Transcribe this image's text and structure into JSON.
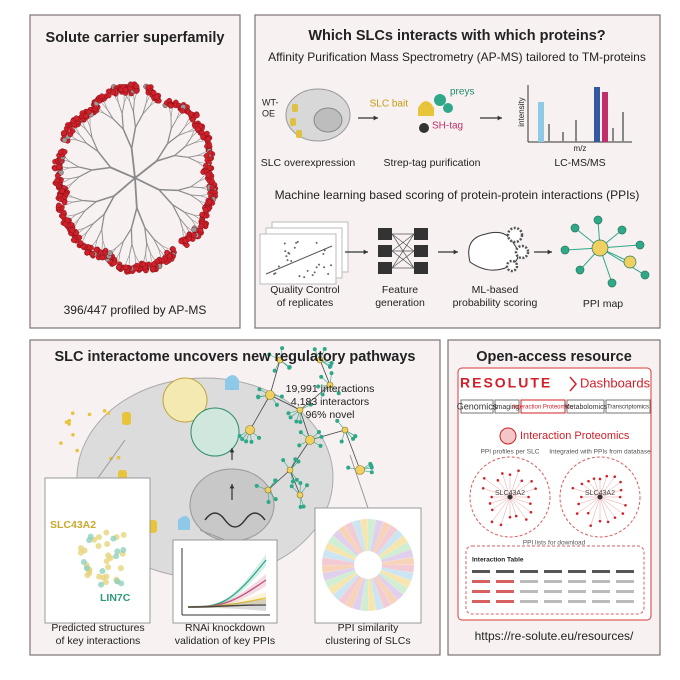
{
  "superfamily": {
    "title": "Solute carrier superfamily",
    "caption": "396/447 profiled by AP-MS"
  },
  "workflow": {
    "title": "Which SLCs interacts with which proteins?",
    "apms_heading": "Affinity Purification Mass Spectrometry (AP-MS) tailored to TM-proteins",
    "apms_labels": {
      "wt_oe": [
        "WT-",
        "OE"
      ],
      "slc_bait": "SLC bait",
      "preys": "preys",
      "sh_tag": "SH-tag",
      "intensity": "intensity",
      "mz": "m/z"
    },
    "apms_steps": [
      "SLC overexpression",
      "Strep-tag purification",
      "LC-MS/MS"
    ],
    "ml_heading": "Machine learning based scoring of protein-protein interactions (PPIs)",
    "ml_steps": [
      [
        "Quality Control",
        "of replicates"
      ],
      [
        "Feature",
        "generation"
      ],
      [
        "ML-based",
        "probability scoring"
      ],
      [
        "PPI map"
      ]
    ]
  },
  "interactome": {
    "title": "SLC interactome uncovers new regulatory pathways",
    "stats": [
      "19,991 interactions",
      "4,183 interactors",
      "96% novel"
    ],
    "structure_labels": [
      "SLC43A2",
      "LIN7C"
    ],
    "insets": [
      [
        "Predicted structures",
        "of key interactions"
      ],
      [
        "RNAi knockdown",
        "validation of key PPIs"
      ],
      [
        "PPI similarity",
        "clustering of SLCs"
      ]
    ]
  },
  "resource": {
    "title": "Open-access resource",
    "brand": "RESOLUTE",
    "brand_suffix": "Dashboards",
    "tabs": [
      "Genomics",
      "Imaging",
      "Interaction Proteomics",
      "Metabolomics",
      "Transcriptomics"
    ],
    "section": "Interaction Proteomics",
    "views": [
      "PPI profiles per SLC",
      "Integrated with PPIs from database"
    ],
    "node_labels": [
      "SLC43A2",
      "SLC43A2"
    ],
    "download": "PPI lists for download",
    "table_title": "Interaction Table",
    "url": "https://re-solute.eu/resources/"
  }
}
